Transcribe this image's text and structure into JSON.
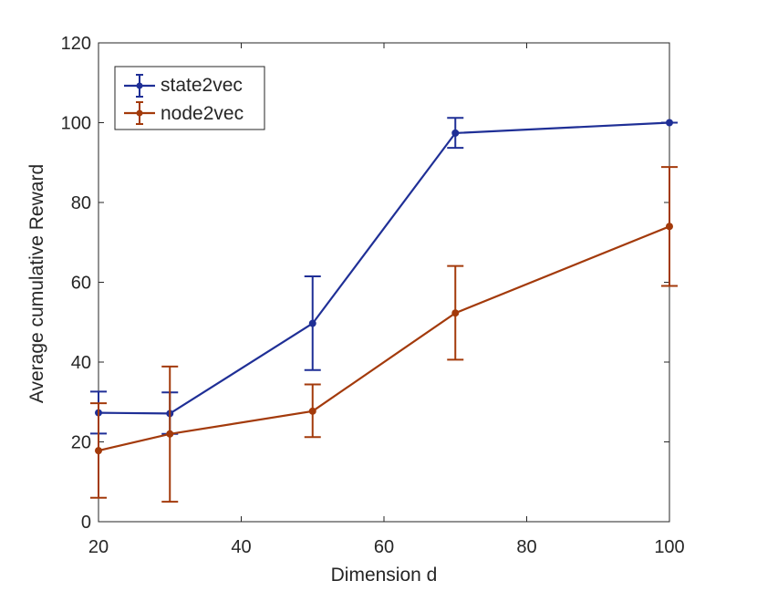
{
  "chart_data": {
    "type": "line",
    "title": "",
    "xlabel": "Dimension d",
    "ylabel": "Average cumulative Reward",
    "xlim": [
      20,
      100
    ],
    "ylim": [
      0,
      120
    ],
    "xticks": [
      20,
      40,
      60,
      80,
      100
    ],
    "yticks": [
      0,
      20,
      40,
      60,
      80,
      100,
      120
    ],
    "xtick_labels": [
      "20",
      "40",
      "60",
      "80",
      "100"
    ],
    "ytick_labels": [
      "0",
      "20",
      "40",
      "60",
      "80",
      "100",
      "120"
    ],
    "grid": false,
    "error_bars": true,
    "legend_position": "top-left",
    "x": [
      20,
      30,
      50,
      70,
      100
    ],
    "series": [
      {
        "name": "state2vec",
        "color": "#1f2f96",
        "values": [
          27.3,
          27.1,
          49.7,
          97.4,
          100.0
        ],
        "err_low": [
          22.1,
          22.0,
          38.0,
          93.7,
          100.0
        ],
        "err_high": [
          32.6,
          32.4,
          61.5,
          101.2,
          100.0
        ]
      },
      {
        "name": "node2vec",
        "color": "#a33a0b",
        "values": [
          17.8,
          22.0,
          27.7,
          52.3,
          74.0
        ],
        "err_low": [
          6.0,
          5.0,
          21.2,
          40.6,
          59.1
        ],
        "err_high": [
          29.7,
          38.9,
          34.4,
          64.1,
          88.9
        ]
      }
    ]
  }
}
